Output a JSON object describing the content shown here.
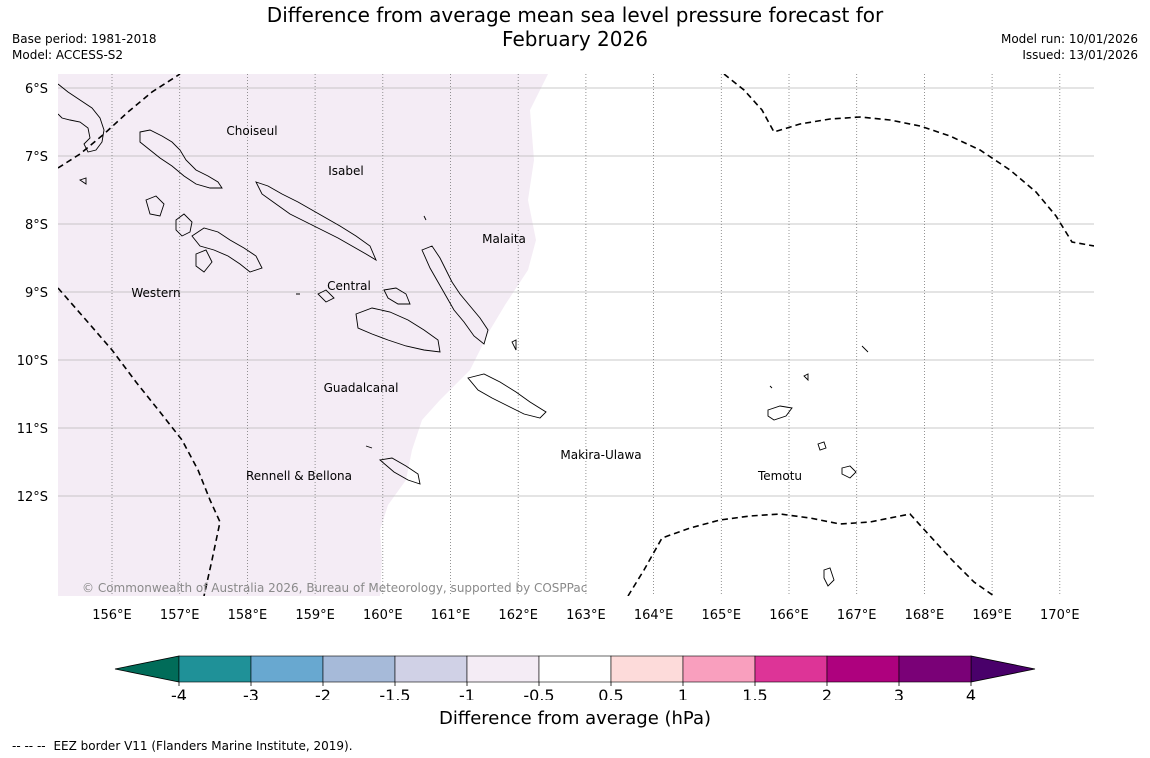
{
  "header": {
    "title_line1": "Difference from average mean sea level pressure forecast for",
    "title_line2": "February 2026",
    "base_period": "Base period: 1981-2018",
    "model": "Model: ACCESS-S2",
    "model_run": "Model run: 10/01/2026",
    "issued": "Issued: 13/01/2026"
  },
  "map": {
    "lat_labels": [
      "6°S",
      "7°S",
      "8°S",
      "9°S",
      "10°S",
      "11°S",
      "12°S"
    ],
    "lon_labels": [
      "156°E",
      "157°E",
      "158°E",
      "159°E",
      "160°E",
      "161°E",
      "162°E",
      "163°E",
      "164°E",
      "165°E",
      "166°E",
      "167°E",
      "168°E",
      "169°E",
      "170°E"
    ],
    "lat_values": [
      -6,
      -7,
      -8,
      -9,
      -10,
      -11,
      -12
    ],
    "lon_values": [
      156,
      157,
      158,
      159,
      160,
      161,
      162,
      163,
      164,
      165,
      166,
      167,
      168,
      169,
      170
    ],
    "province_labels": [
      "Choiseul",
      "Isabel",
      "Malaita",
      "Western",
      "Central",
      "Guadalcanal",
      "Rennell & Bellona",
      "Makira-Ulawa",
      "Temotu"
    ],
    "copyright": "© Commonwealth of Australia 2026, Bureau of Meteorology, supported by COSPPac",
    "anomaly_fill_color": "#f4ecf5",
    "anomaly_category": "-1 to -0.5 hPa"
  },
  "colorbar": {
    "ticks": [
      "-4",
      "-3",
      "-2",
      "-1.5",
      "-1",
      "-0.5",
      "0.5",
      "1",
      "1.5",
      "2",
      "3",
      "4"
    ],
    "colors": [
      "#1f9198",
      "#68a8d0",
      "#a6bad9",
      "#d0d1e6",
      "#f4ecf5",
      "#ffffff",
      "#fddbda",
      "#f99fbe",
      "#dd3497",
      "#ae017e",
      "#7a0177"
    ],
    "low_extend_color": "#016c59",
    "high_extend_color": "#49006a",
    "label": "Difference from average (hPa)"
  },
  "legend": {
    "dash_symbol": "--  --  --",
    "text": "EEZ border V11 (Flanders Marine Institute, 2019)."
  }
}
